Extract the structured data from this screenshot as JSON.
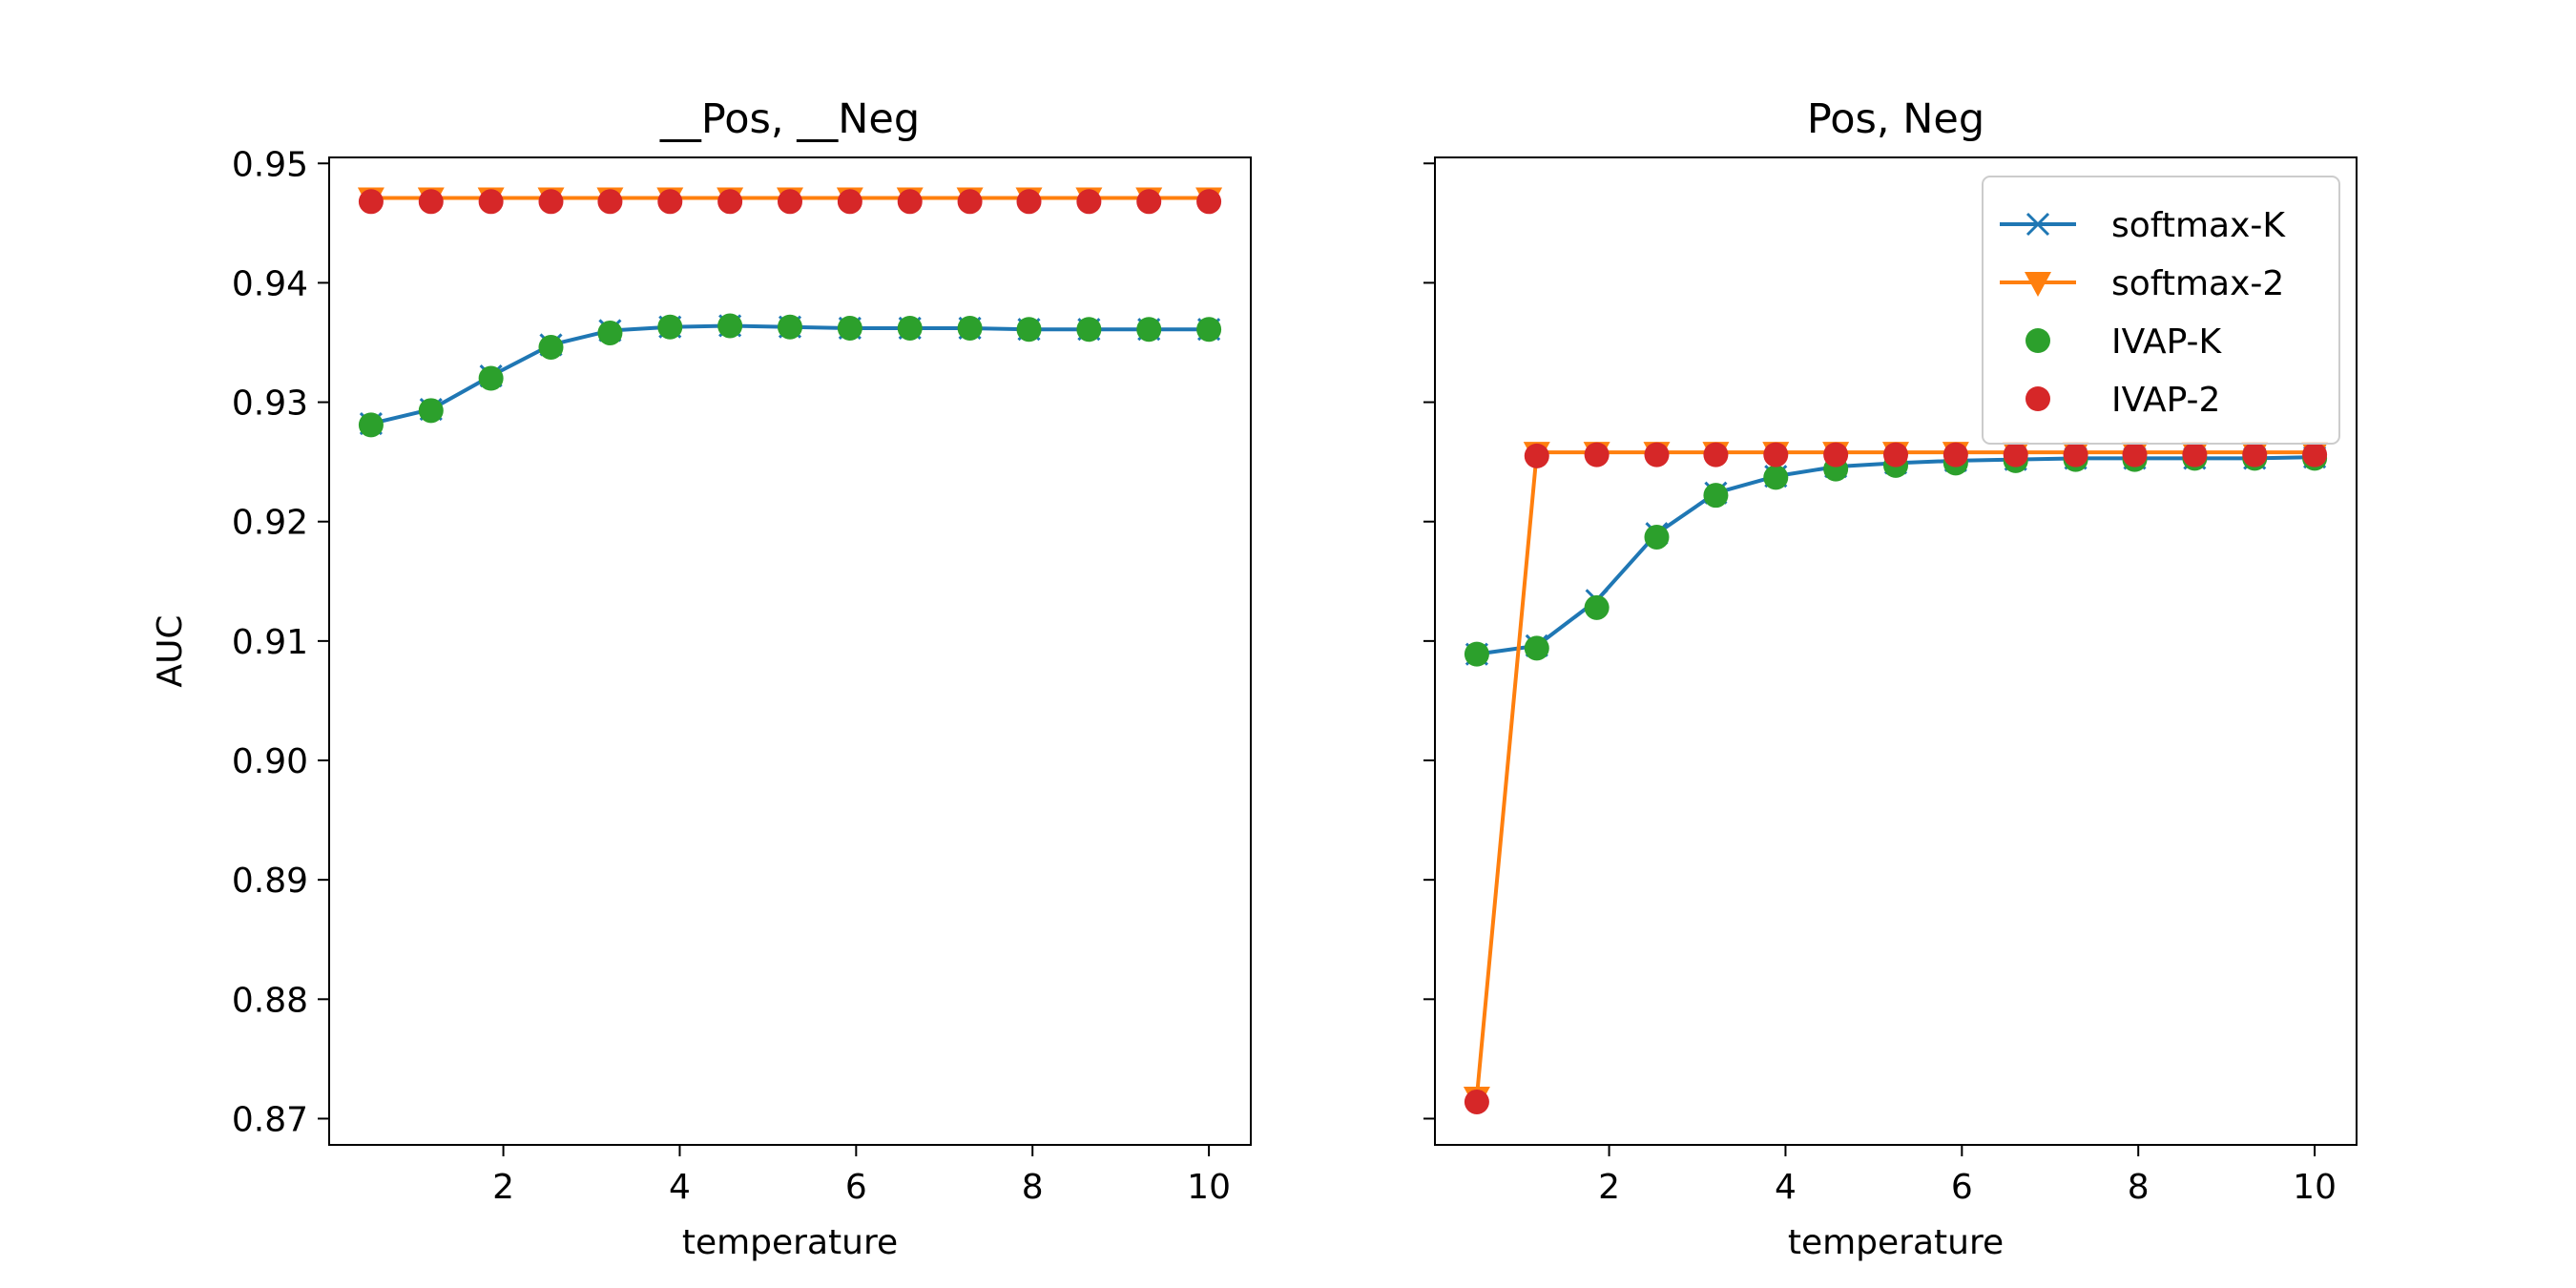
{
  "chart_data": [
    {
      "type": "line",
      "title": "__Pos, __Neg",
      "xlabel": "temperature",
      "ylabel": "AUC",
      "xlim": [
        0.025,
        10.475
      ],
      "ylim": [
        0.8678,
        0.9505
      ],
      "x_ticks": [
        2,
        4,
        6,
        8,
        10
      ],
      "y_ticks": [
        0.87,
        0.88,
        0.89,
        0.9,
        0.91,
        0.92,
        0.93,
        0.94,
        0.95
      ],
      "y_tick_labels": [
        "0.87",
        "0.88",
        "0.89",
        "0.90",
        "0.91",
        "0.92",
        "0.93",
        "0.94",
        "0.95"
      ],
      "grid": false,
      "x": [
        0.5,
        1.18,
        1.86,
        2.54,
        3.21,
        3.89,
        4.57,
        5.25,
        5.93,
        6.61,
        7.29,
        7.96,
        8.64,
        9.32,
        10.0
      ],
      "series": [
        {
          "name": "softmax-K",
          "marker": "x",
          "line": true,
          "color": "#1f77b4",
          "values": [
            0.9282,
            0.9294,
            0.9322,
            0.9348,
            0.936,
            0.9363,
            0.9364,
            0.9363,
            0.9362,
            0.9362,
            0.9362,
            0.9361,
            0.9361,
            0.9361,
            0.9361
          ]
        },
        {
          "name": "softmax-2",
          "marker": "triangle-down",
          "line": true,
          "color": "#ff7f0e",
          "values": [
            0.9471,
            0.9471,
            0.9471,
            0.9471,
            0.9471,
            0.9471,
            0.9471,
            0.9471,
            0.9471,
            0.9471,
            0.9471,
            0.9471,
            0.9471,
            0.9471,
            0.9471
          ]
        },
        {
          "name": "IVAP-K",
          "marker": "circle",
          "line": false,
          "color": "#2ca02c",
          "values": [
            0.9281,
            0.9293,
            0.932,
            0.9346,
            0.9358,
            0.9363,
            0.9364,
            0.9363,
            0.9362,
            0.9362,
            0.9362,
            0.9361,
            0.9361,
            0.9361,
            0.9361
          ]
        },
        {
          "name": "IVAP-2",
          "marker": "circle",
          "line": false,
          "color": "#d62728",
          "values": [
            0.9468,
            0.9468,
            0.9468,
            0.9468,
            0.9468,
            0.9468,
            0.9468,
            0.9468,
            0.9468,
            0.9468,
            0.9468,
            0.9468,
            0.9468,
            0.9468,
            0.9468
          ]
        }
      ],
      "legend": false
    },
    {
      "type": "line",
      "title": "Pos, Neg",
      "xlabel": "temperature",
      "ylabel": "",
      "xlim": [
        0.025,
        10.475
      ],
      "ylim": [
        0.8678,
        0.9505
      ],
      "x_ticks": [
        2,
        4,
        6,
        8,
        10
      ],
      "y_ticks": [
        0.87,
        0.88,
        0.89,
        0.9,
        0.91,
        0.92,
        0.93,
        0.94,
        0.95
      ],
      "y_tick_labels": [],
      "grid": false,
      "x": [
        0.5,
        1.18,
        1.86,
        2.54,
        3.21,
        3.89,
        4.57,
        5.25,
        5.93,
        6.61,
        7.29,
        7.96,
        8.64,
        9.32,
        10.0
      ],
      "series": [
        {
          "name": "softmax-K",
          "marker": "x",
          "line": true,
          "color": "#1f77b4",
          "values": [
            0.9089,
            0.9096,
            0.9134,
            0.919,
            0.9224,
            0.9238,
            0.9246,
            0.9249,
            0.9251,
            0.9252,
            0.9253,
            0.9253,
            0.9253,
            0.9253,
            0.9254
          ]
        },
        {
          "name": "softmax-2",
          "marker": "triangle-down",
          "line": true,
          "color": "#ff7f0e",
          "values": [
            0.8718,
            0.9258,
            0.9258,
            0.9258,
            0.9258,
            0.9258,
            0.9258,
            0.9258,
            0.9258,
            0.9258,
            0.9258,
            0.9258,
            0.9258,
            0.9258,
            0.9258
          ]
        },
        {
          "name": "IVAP-K",
          "marker": "circle",
          "line": false,
          "color": "#2ca02c",
          "values": [
            0.9089,
            0.9094,
            0.9128,
            0.9187,
            0.9222,
            0.9237,
            0.9244,
            0.9247,
            0.9249,
            0.9251,
            0.9252,
            0.9252,
            0.9253,
            0.9253,
            0.9253
          ]
        },
        {
          "name": "IVAP-2",
          "marker": "circle",
          "line": false,
          "color": "#d62728",
          "values": [
            0.8714,
            0.9255,
            0.9256,
            0.9256,
            0.9256,
            0.9256,
            0.9256,
            0.9256,
            0.9256,
            0.9256,
            0.9256,
            0.9256,
            0.9256,
            0.9256,
            0.9256
          ]
        }
      ],
      "legend": true,
      "legend_position": "top-right"
    }
  ]
}
